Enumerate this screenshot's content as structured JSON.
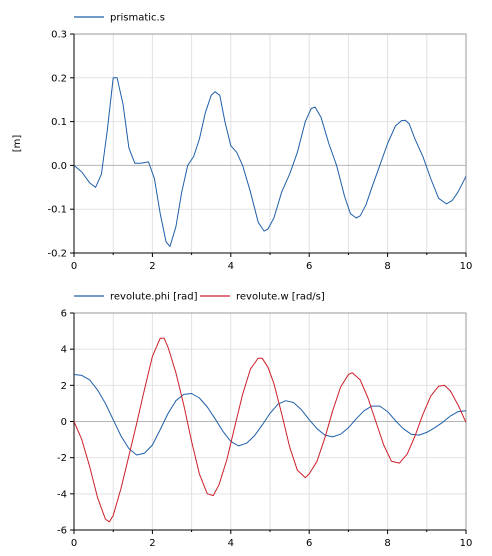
{
  "chart_data": [
    {
      "type": "line",
      "ylabel": "[m]",
      "xlim": [
        0,
        10
      ],
      "ylim": [
        -0.2,
        0.3
      ],
      "xticks": [
        "0",
        "2",
        "4",
        "6",
        "8",
        "10"
      ],
      "yticks": [
        "0.3",
        "0.2",
        "0.1",
        "0.0",
        "-0.1",
        "-0.2"
      ],
      "grid": true,
      "legend_position": "top-left",
      "series": [
        {
          "name": "prismatic.s",
          "color": "#1f5fa8",
          "x": [
            0,
            0.2,
            0.4,
            0.55,
            0.7,
            0.85,
            1.0,
            1.1,
            1.25,
            1.4,
            1.55,
            1.7,
            1.9,
            2.05,
            2.2,
            2.35,
            2.45,
            2.6,
            2.75,
            2.9,
            3.05,
            3.2,
            3.35,
            3.5,
            3.6,
            3.72,
            3.85,
            4.0,
            4.15,
            4.3,
            4.5,
            4.7,
            4.85,
            4.95,
            5.1,
            5.3,
            5.5,
            5.7,
            5.9,
            6.05,
            6.15,
            6.3,
            6.5,
            6.7,
            6.9,
            7.05,
            7.2,
            7.3,
            7.45,
            7.6,
            7.8,
            8.0,
            8.2,
            8.35,
            8.45,
            8.55,
            8.7,
            8.9,
            9.1,
            9.3,
            9.5,
            9.65,
            9.8,
            10.0
          ],
          "y": [
            0.0,
            -0.015,
            -0.04,
            -0.05,
            -0.02,
            0.08,
            0.2,
            0.2,
            0.14,
            0.04,
            0.005,
            0.005,
            0.008,
            -0.03,
            -0.11,
            -0.175,
            -0.185,
            -0.14,
            -0.06,
            0.0,
            0.02,
            0.06,
            0.12,
            0.16,
            0.168,
            0.16,
            0.1,
            0.045,
            0.03,
            0.0,
            -0.06,
            -0.13,
            -0.15,
            -0.145,
            -0.12,
            -0.06,
            -0.02,
            0.03,
            0.1,
            0.13,
            0.133,
            0.11,
            0.05,
            0.0,
            -0.07,
            -0.11,
            -0.12,
            -0.115,
            -0.09,
            -0.05,
            0.0,
            0.05,
            0.09,
            0.102,
            0.103,
            0.095,
            0.06,
            0.02,
            -0.03,
            -0.075,
            -0.088,
            -0.08,
            -0.06,
            -0.025
          ]
        }
      ]
    },
    {
      "type": "line",
      "ylabel": "",
      "xlim": [
        0,
        10
      ],
      "ylim": [
        -6,
        6
      ],
      "xticks": [
        "0",
        "2",
        "4",
        "6",
        "8",
        "10"
      ],
      "yticks": [
        "6",
        "4",
        "2",
        "0",
        "-2",
        "-4",
        "-6"
      ],
      "grid": true,
      "legend_position": "top-left",
      "series": [
        {
          "name": "revolute.phi [rad]",
          "color": "#1f5fa8",
          "x": [
            0,
            0.2,
            0.4,
            0.6,
            0.8,
            1.0,
            1.2,
            1.4,
            1.6,
            1.8,
            2.0,
            2.2,
            2.4,
            2.6,
            2.8,
            3.0,
            3.2,
            3.4,
            3.6,
            3.8,
            4.0,
            4.2,
            4.4,
            4.6,
            4.8,
            5.0,
            5.2,
            5.4,
            5.6,
            5.8,
            6.0,
            6.2,
            6.4,
            6.6,
            6.8,
            7.0,
            7.2,
            7.4,
            7.6,
            7.8,
            8.0,
            8.2,
            8.4,
            8.6,
            8.8,
            9.0,
            9.2,
            9.4,
            9.6,
            9.8,
            10.0
          ],
          "y": [
            2.6,
            2.55,
            2.3,
            1.75,
            1.0,
            0.1,
            -0.8,
            -1.5,
            -1.85,
            -1.75,
            -1.3,
            -0.45,
            0.45,
            1.15,
            1.5,
            1.55,
            1.3,
            0.8,
            0.15,
            -0.55,
            -1.1,
            -1.35,
            -1.2,
            -0.8,
            -0.2,
            0.45,
            0.95,
            1.15,
            1.05,
            0.65,
            0.1,
            -0.4,
            -0.75,
            -0.85,
            -0.7,
            -0.35,
            0.15,
            0.6,
            0.85,
            0.85,
            0.55,
            0.05,
            -0.4,
            -0.7,
            -0.75,
            -0.6,
            -0.35,
            -0.05,
            0.3,
            0.55,
            0.6
          ]
        },
        {
          "name": "revolute.w [rad/s]",
          "color": "#cc1f2a",
          "x": [
            0,
            0.2,
            0.4,
            0.6,
            0.8,
            0.9,
            1.0,
            1.2,
            1.4,
            1.6,
            1.8,
            2.0,
            2.2,
            2.3,
            2.4,
            2.6,
            2.8,
            3.0,
            3.2,
            3.4,
            3.55,
            3.7,
            3.9,
            4.1,
            4.3,
            4.5,
            4.7,
            4.8,
            4.95,
            5.1,
            5.3,
            5.5,
            5.7,
            5.9,
            6.0,
            6.2,
            6.4,
            6.6,
            6.8,
            7.0,
            7.1,
            7.3,
            7.5,
            7.7,
            7.9,
            8.1,
            8.3,
            8.5,
            8.7,
            8.9,
            9.1,
            9.3,
            9.45,
            9.6,
            9.8,
            10.0
          ],
          "y": [
            0.0,
            -1.0,
            -2.5,
            -4.2,
            -5.4,
            -5.55,
            -5.2,
            -3.7,
            -1.9,
            -0.1,
            1.8,
            3.6,
            4.6,
            4.6,
            4.1,
            2.7,
            0.9,
            -1.1,
            -2.9,
            -4.0,
            -4.1,
            -3.5,
            -2.1,
            -0.3,
            1.5,
            2.9,
            3.5,
            3.5,
            3.0,
            2.1,
            0.4,
            -1.4,
            -2.7,
            -3.1,
            -2.9,
            -2.2,
            -0.9,
            0.6,
            1.9,
            2.6,
            2.7,
            2.3,
            1.3,
            0.0,
            -1.3,
            -2.2,
            -2.3,
            -1.8,
            -0.8,
            0.4,
            1.4,
            1.95,
            2.0,
            1.7,
            0.9,
            -0.05
          ]
        }
      ]
    }
  ]
}
